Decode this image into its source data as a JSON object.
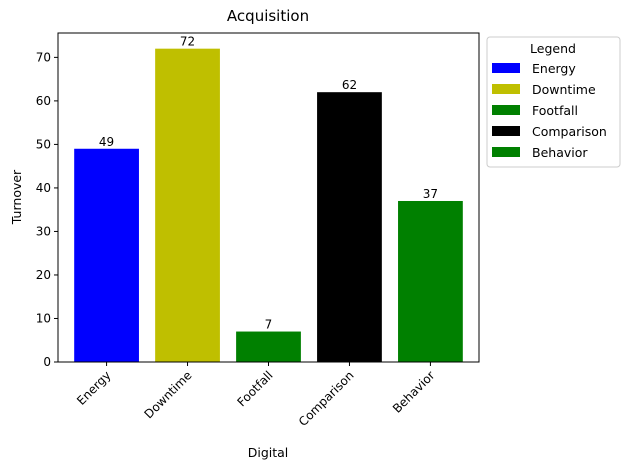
{
  "chart_data": {
    "type": "bar",
    "title": "Acquisition",
    "xlabel": "Digital",
    "ylabel": "Turnover",
    "categories": [
      "Energy",
      "Downtime",
      "Footfall",
      "Comparison",
      "Behavior"
    ],
    "values": [
      49,
      72,
      7,
      62,
      37
    ],
    "colors": [
      "#0000ff",
      "#bfbf00",
      "#008000",
      "#000000",
      "#008000"
    ],
    "ylim": [
      0,
      75.6
    ],
    "yticks": [
      0,
      10,
      20,
      30,
      40,
      50,
      60,
      70
    ],
    "grid": false,
    "legend": {
      "title": "Legend",
      "placement": "outside-right-top",
      "entries": [
        "Energy",
        "Downtime",
        "Footfall",
        "Comparison",
        "Behavior"
      ]
    }
  }
}
